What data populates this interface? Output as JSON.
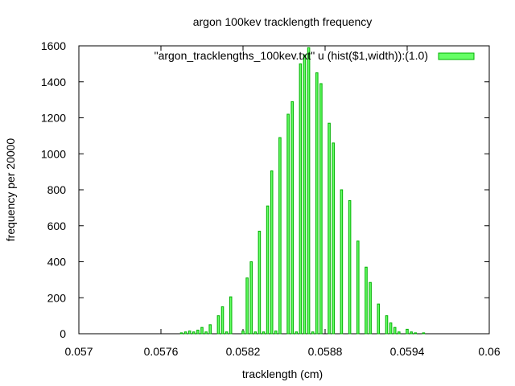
{
  "chart_data": {
    "type": "bar",
    "title": "argon 100kev tracklength frequency",
    "xlabel": "tracklength (cm)",
    "ylabel": "frequency per 20000",
    "legend": {
      "label": "\"argon_tracklengths_100kev.txt\" u (hist($1,width)):(1.0)",
      "placement": "top-right"
    },
    "xlim": [
      0.057,
      0.06
    ],
    "ylim": [
      0,
      1600
    ],
    "x_ticks": [
      "0.057",
      "0.0576",
      "0.0582",
      "0.0588",
      "0.0594",
      "0.06"
    ],
    "y_ticks": [
      "0",
      "200",
      "400",
      "600",
      "800",
      "1000",
      "1200",
      "1400",
      "1600"
    ],
    "bar_width": 1.5e-05,
    "grid": false,
    "colors": {
      "bar_fill": "#66ff66",
      "bar_stroke": "#00b000",
      "axis": "#000000"
    },
    "series": [
      {
        "x": [
          0.05775,
          0.05778,
          0.05781,
          0.05784,
          0.05787,
          0.0579,
          0.05793,
          0.05796,
          0.05799,
          0.05802,
          0.05805,
          0.05808,
          0.05811,
          0.05814,
          0.05817,
          0.0582,
          0.05823,
          0.05826,
          0.05829,
          0.05832,
          0.05835,
          0.05838,
          0.05841,
          0.05844,
          0.05847,
          0.0585,
          0.05853,
          0.05856,
          0.05859,
          0.05862,
          0.05865,
          0.05868,
          0.05871,
          0.05874,
          0.05877,
          0.0588,
          0.05883,
          0.05886,
          0.05889,
          0.05892,
          0.05895,
          0.05898,
          0.05901,
          0.05904,
          0.05907,
          0.0591,
          0.05913,
          0.05916,
          0.05919,
          0.05922,
          0.05925,
          0.05928,
          0.05931,
          0.05934,
          0.05937,
          0.0594,
          0.05943,
          0.05946,
          0.05949,
          0.05952,
          0.05955
        ],
        "values": [
          5,
          10,
          15,
          10,
          20,
          35,
          10,
          50,
          0,
          100,
          150,
          10,
          205,
          0,
          0,
          15,
          310,
          400,
          10,
          570,
          10,
          710,
          905,
          15,
          1090,
          0,
          1220,
          1290,
          10,
          1500,
          1550,
          1590,
          10,
          1450,
          1390,
          0,
          1170,
          1060,
          0,
          800,
          0,
          740,
          0,
          515,
          0,
          370,
          285,
          0,
          165,
          0,
          100,
          60,
          35,
          10,
          0,
          25,
          10,
          5,
          0,
          5,
          0
        ]
      }
    ]
  }
}
